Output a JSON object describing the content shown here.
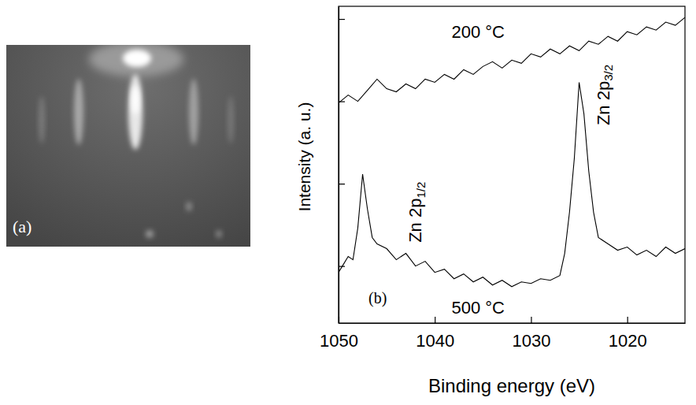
{
  "image": {
    "label": "(a)"
  },
  "chart_data": {
    "type": "line",
    "panel_label": "(b)",
    "x_label": "Binding energy (eV)",
    "y_label": "Intensity (a. u.)",
    "xlim": [
      1050,
      1014
    ],
    "xticks": [
      1050,
      1040,
      1030,
      1020
    ],
    "ylim": [
      0,
      100
    ],
    "yticks": [
      18,
      44,
      70,
      96
    ],
    "tick_labels": "x",
    "grid": false,
    "series": [
      {
        "color": "#000000",
        "line_style": "solid",
        "x": [
          1050,
          1049,
          1048,
          1047,
          1046,
          1045,
          1044,
          1043,
          1042,
          1041,
          1040,
          1039,
          1038,
          1037,
          1036,
          1035,
          1034,
          1033,
          1032,
          1031,
          1030,
          1029,
          1028,
          1027,
          1026,
          1025,
          1024,
          1023,
          1022,
          1021,
          1020,
          1019,
          1018,
          1017,
          1016,
          1015,
          1014
        ],
        "values": [
          69.5,
          72,
          70,
          73.5,
          77,
          74,
          73,
          75.5,
          74,
          77,
          76,
          78.5,
          77,
          80,
          78.5,
          81,
          82.5,
          80.5,
          83,
          82,
          85,
          84,
          86.5,
          85,
          87.5,
          86,
          89,
          88,
          90.5,
          89,
          92,
          91,
          93.5,
          92.5,
          95,
          94,
          96.5
        ]
      },
      {
        "color": "#000000",
        "line_style": "solid",
        "x": [
          1050,
          1049.5,
          1049,
          1048.5,
          1048,
          1047.5,
          1047,
          1046.5,
          1046,
          1045,
          1044,
          1043,
          1042,
          1041,
          1040,
          1039,
          1038,
          1037,
          1036,
          1035,
          1034,
          1033,
          1032,
          1031,
          1030,
          1029,
          1028,
          1027,
          1026.5,
          1026,
          1025.5,
          1025,
          1024.5,
          1024,
          1023.5,
          1023,
          1022,
          1021,
          1020,
          1019,
          1018,
          1017,
          1016,
          1015,
          1014
        ],
        "values": [
          16,
          18.5,
          21,
          20,
          30,
          47,
          36,
          27,
          25,
          23.5,
          20,
          22,
          18,
          19.5,
          16,
          17,
          14,
          15.5,
          13,
          14.5,
          12,
          13.5,
          11.5,
          13,
          12.5,
          14,
          13.5,
          15,
          22,
          35,
          52,
          76,
          66,
          48,
          35,
          27,
          25,
          23,
          24,
          21.5,
          23,
          21,
          24,
          22,
          23.5
        ]
      }
    ],
    "annotations": [
      {
        "text": "200 °C",
        "x": 1035.5,
        "y": 92
      },
      {
        "text": "500 °C",
        "x": 1035.5,
        "y": 5
      }
    ],
    "peak_labels": [
      {
        "text": "Zn 2p1/2",
        "x": 1042,
        "y": 35
      },
      {
        "text": "Zn 2p3/2",
        "x": 1022.5,
        "y": 72
      }
    ]
  }
}
